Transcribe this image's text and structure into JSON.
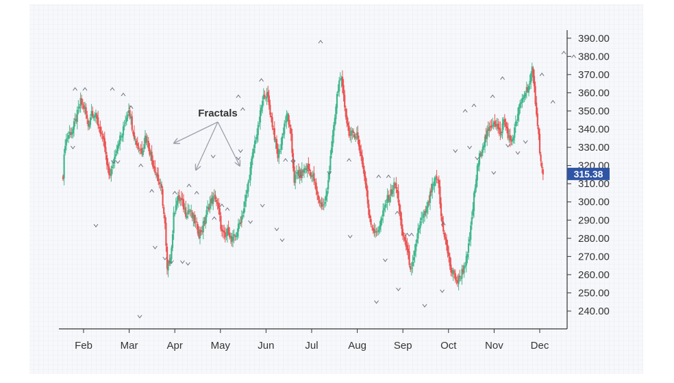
{
  "chart_data": {
    "type": "candlestick",
    "annotation": "Fractals",
    "x_ticks": [
      "Feb",
      "Mar",
      "Apr",
      "May",
      "Jun",
      "Jul",
      "Aug",
      "Sep",
      "Oct",
      "Nov",
      "Dec"
    ],
    "y_ticks": [
      "240.00",
      "250.00",
      "260.00",
      "270.00",
      "280.00",
      "290.00",
      "300.00",
      "310.00",
      "320.00",
      "330.00",
      "340.00",
      "350.00",
      "360.00",
      "370.00",
      "380.00",
      "390.00"
    ],
    "ylim": [
      236,
      393
    ],
    "last_price": "315.38",
    "grid": true,
    "colors": {
      "up": "#3fb68b",
      "down": "#ea5252",
      "grid": "#dfe3ea",
      "price_tag": "#2f55a4",
      "axis": "#333333",
      "annotation": "#9aa0aa"
    },
    "path_points": [
      [
        0,
        315
      ],
      [
        2,
        333
      ],
      [
        5,
        337
      ],
      [
        9,
        340
      ],
      [
        12,
        346
      ],
      [
        16,
        355
      ],
      [
        20,
        351
      ],
      [
        23,
        342
      ],
      [
        26,
        350
      ],
      [
        29,
        348
      ],
      [
        32,
        343
      ],
      [
        35,
        337
      ],
      [
        38,
        330
      ],
      [
        40,
        320
      ],
      [
        42,
        315
      ],
      [
        45,
        318
      ],
      [
        48,
        328
      ],
      [
        51,
        334
      ],
      [
        54,
        337
      ],
      [
        57,
        345
      ],
      [
        60,
        352
      ],
      [
        63,
        342
      ],
      [
        66,
        334
      ],
      [
        69,
        330
      ],
      [
        72,
        328
      ],
      [
        75,
        336
      ],
      [
        78,
        331
      ],
      [
        81,
        323
      ],
      [
        84,
        318
      ],
      [
        87,
        312
      ],
      [
        90,
        306
      ],
      [
        93,
        287
      ],
      [
        95,
        262
      ],
      [
        97,
        268
      ],
      [
        99,
        275
      ],
      [
        101,
        292
      ],
      [
        103,
        300
      ],
      [
        106,
        302
      ],
      [
        109,
        299
      ],
      [
        112,
        294
      ],
      [
        115,
        296
      ],
      [
        118,
        292
      ],
      [
        121,
        288
      ],
      [
        124,
        283
      ],
      [
        127,
        285
      ],
      [
        130,
        292
      ],
      [
        133,
        298
      ],
      [
        136,
        301
      ],
      [
        139,
        303
      ],
      [
        142,
        295
      ],
      [
        145,
        283
      ],
      [
        148,
        280
      ],
      [
        151,
        285
      ],
      [
        154,
        278
      ],
      [
        157,
        281
      ],
      [
        160,
        286
      ],
      [
        163,
        292
      ],
      [
        166,
        299
      ],
      [
        169,
        310
      ],
      [
        172,
        322
      ],
      [
        175,
        333
      ],
      [
        178,
        340
      ],
      [
        181,
        352
      ],
      [
        184,
        360
      ],
      [
        187,
        357
      ],
      [
        190,
        346
      ],
      [
        193,
        336
      ],
      [
        196,
        325
      ],
      [
        199,
        332
      ],
      [
        202,
        343
      ],
      [
        205,
        348
      ],
      [
        208,
        335
      ],
      [
        211,
        312
      ],
      [
        214,
        316
      ],
      [
        217,
        315
      ],
      [
        220,
        318
      ],
      [
        223,
        319
      ],
      [
        226,
        316
      ],
      [
        229,
        312
      ],
      [
        232,
        303
      ],
      [
        235,
        299
      ],
      [
        238,
        298
      ],
      [
        241,
        305
      ],
      [
        244,
        326
      ],
      [
        247,
        340
      ],
      [
        250,
        358
      ],
      [
        253,
        370
      ],
      [
        256,
        357
      ],
      [
        259,
        344
      ],
      [
        262,
        336
      ],
      [
        265,
        338
      ],
      [
        268,
        337
      ],
      [
        270,
        331
      ],
      [
        273,
        322
      ],
      [
        276,
        310
      ],
      [
        279,
        294
      ],
      [
        282,
        287
      ],
      [
        285,
        282
      ],
      [
        288,
        286
      ],
      [
        291,
        291
      ],
      [
        294,
        298
      ],
      [
        297,
        303
      ],
      [
        300,
        306
      ],
      [
        303,
        310
      ],
      [
        306,
        301
      ],
      [
        309,
        283
      ],
      [
        312,
        279
      ],
      [
        315,
        270
      ],
      [
        318,
        262
      ],
      [
        321,
        271
      ],
      [
        324,
        285
      ],
      [
        327,
        290
      ],
      [
        330,
        293
      ],
      [
        333,
        298
      ],
      [
        336,
        306
      ],
      [
        339,
        311
      ],
      [
        342,
        313
      ],
      [
        345,
        292
      ],
      [
        348,
        282
      ],
      [
        351,
        272
      ],
      [
        354,
        262
      ],
      [
        357,
        260
      ],
      [
        360,
        256
      ],
      [
        363,
        260
      ],
      [
        366,
        265
      ],
      [
        369,
        270
      ],
      [
        372,
        285
      ],
      [
        375,
        303
      ],
      [
        378,
        318
      ],
      [
        381,
        328
      ],
      [
        384,
        333
      ],
      [
        387,
        337
      ],
      [
        390,
        341
      ],
      [
        393,
        345
      ],
      [
        396,
        342
      ],
      [
        399,
        336
      ],
      [
        402,
        345
      ],
      [
        405,
        340
      ],
      [
        408,
        332
      ],
      [
        411,
        337
      ],
      [
        414,
        345
      ],
      [
        417,
        353
      ],
      [
        420,
        358
      ],
      [
        423,
        362
      ],
      [
        426,
        366
      ],
      [
        428,
        372
      ],
      [
        430,
        362
      ],
      [
        432,
        350
      ],
      [
        434,
        336
      ],
      [
        436,
        322
      ],
      [
        438,
        314
      ]
    ],
    "fractals_up": [
      [
        11,
        362
      ],
      [
        20,
        362
      ],
      [
        45,
        362
      ],
      [
        55,
        359
      ],
      [
        62,
        352
      ],
      [
        71,
        320
      ],
      [
        81,
        306
      ],
      [
        102,
        305
      ],
      [
        115,
        309
      ],
      [
        122,
        305
      ],
      [
        138,
        291
      ],
      [
        145,
        298
      ],
      [
        150,
        296
      ],
      [
        160,
        358
      ],
      [
        164,
        351
      ],
      [
        181,
        367
      ],
      [
        203,
        323
      ],
      [
        210,
        323
      ],
      [
        217,
        314
      ],
      [
        235,
        388
      ],
      [
        261,
        323
      ],
      [
        288,
        314
      ],
      [
        297,
        314
      ],
      [
        305,
        294
      ],
      [
        314,
        282
      ],
      [
        318,
        282
      ],
      [
        347,
        288
      ],
      [
        367,
        350
      ],
      [
        375,
        353
      ],
      [
        392,
        358
      ],
      [
        401,
        368
      ],
      [
        437,
        370
      ],
      [
        447,
        355
      ],
      [
        457,
        382
      ],
      [
        466,
        380
      ]
    ],
    "fractals_down": [
      [
        9,
        330
      ],
      [
        30,
        287
      ],
      [
        46,
        322
      ],
      [
        50,
        322
      ],
      [
        70,
        237
      ],
      [
        84,
        275
      ],
      [
        93,
        269
      ],
      [
        99,
        267
      ],
      [
        109,
        267
      ],
      [
        114,
        266
      ],
      [
        137,
        325
      ],
      [
        160,
        324
      ],
      [
        162,
        328
      ],
      [
        171,
        289
      ],
      [
        182,
        298
      ],
      [
        195,
        285
      ],
      [
        200,
        279
      ],
      [
        210,
        322
      ],
      [
        243,
        316
      ],
      [
        262,
        281
      ],
      [
        286,
        245
      ],
      [
        294,
        268
      ],
      [
        306,
        252
      ],
      [
        330,
        243
      ],
      [
        346,
        251
      ],
      [
        358,
        328
      ],
      [
        371,
        330
      ],
      [
        378,
        324
      ],
      [
        393,
        316
      ],
      [
        406,
        331
      ],
      [
        415,
        327
      ],
      [
        422,
        333
      ]
    ]
  }
}
